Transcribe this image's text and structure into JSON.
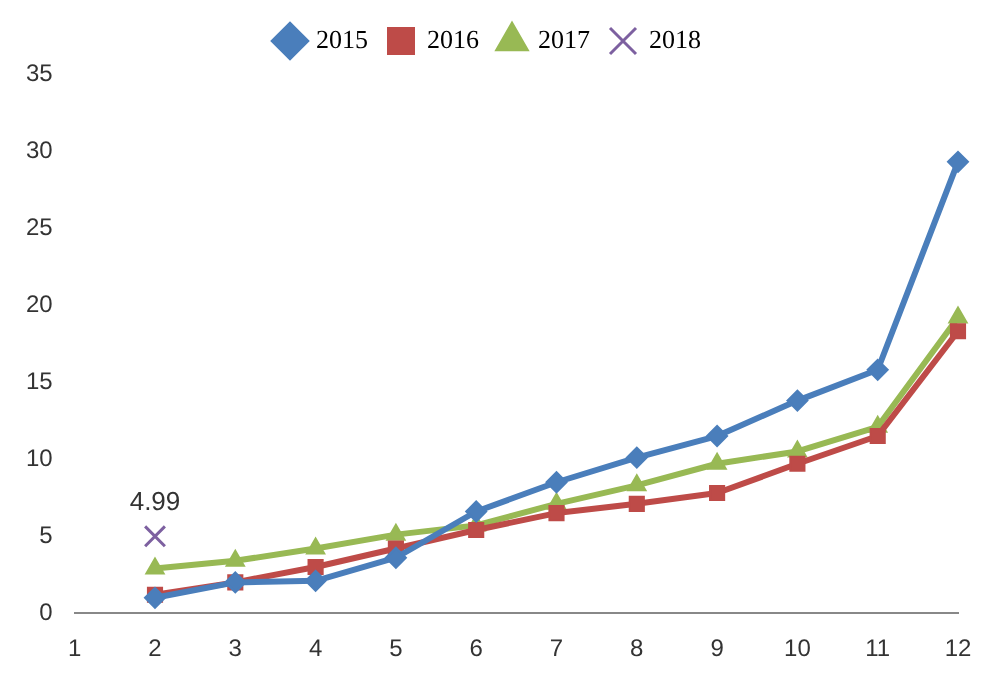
{
  "chart_data": {
    "type": "line",
    "x": [
      2,
      3,
      4,
      5,
      6,
      7,
      8,
      9,
      10,
      11,
      12
    ],
    "series": [
      {
        "name": "2015",
        "color": "#4a7ebb",
        "marker": "diamond",
        "values": [
          1.0,
          2.0,
          2.1,
          3.6,
          6.6,
          8.5,
          10.1,
          11.5,
          13.8,
          15.8,
          29.3
        ]
      },
      {
        "name": "2016",
        "color": "#be4b48",
        "marker": "square",
        "values": [
          1.2,
          2.0,
          3.0,
          4.2,
          5.4,
          6.5,
          7.1,
          7.8,
          9.7,
          11.5,
          18.3
        ]
      },
      {
        "name": "2017",
        "color": "#98b954",
        "marker": "triangle",
        "values": [
          2.9,
          3.4,
          4.2,
          5.1,
          5.7,
          7.1,
          8.3,
          9.7,
          10.5,
          12.1,
          19.2
        ]
      },
      {
        "name": "2018",
        "color": "#7d60a0",
        "marker": "cross",
        "x": [
          2
        ],
        "values": [
          4.99
        ],
        "value_labels": [
          "4.99"
        ]
      }
    ],
    "xlim": [
      1,
      12
    ],
    "xticks": [
      1,
      2,
      3,
      4,
      5,
      6,
      7,
      8,
      9,
      10,
      11,
      12
    ],
    "ylim": [
      0,
      35
    ],
    "yticks": [
      0,
      5,
      10,
      15,
      20,
      25,
      30,
      35
    ],
    "grid": false,
    "legend": "top"
  }
}
